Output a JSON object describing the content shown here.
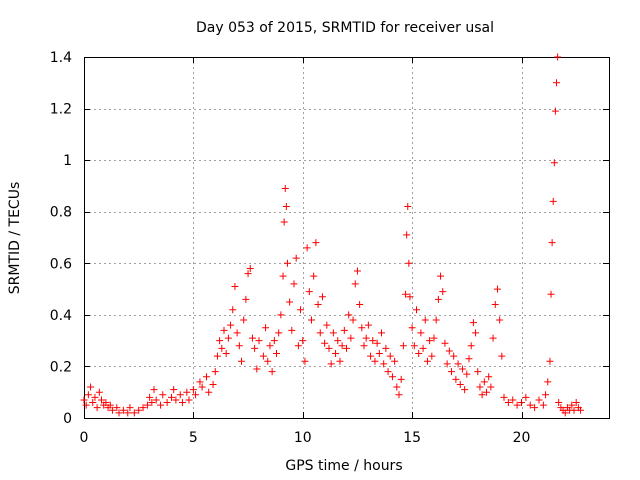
{
  "chart_data": {
    "type": "scatter",
    "title": "Day 053 of 2015, SRMTID for receiver usal",
    "xlabel": "GPS time / hours",
    "ylabel": "SRMTID / TECUs",
    "xlim": [
      0,
      24
    ],
    "ylim": [
      0,
      1.4
    ],
    "x_ticks": [
      0,
      5,
      10,
      15,
      20
    ],
    "x_tick_labels": [
      "0",
      "5",
      "10",
      "15",
      "20"
    ],
    "y_ticks": [
      0,
      0.2,
      0.4,
      0.6,
      0.8,
      1.0,
      1.2,
      1.4
    ],
    "y_tick_labels": [
      "0",
      "0.2",
      "0.4",
      "0.6",
      "0.8",
      "1",
      "1.2",
      "1.4"
    ],
    "grid": true,
    "marker": "+",
    "series_color": "#ff0000",
    "series": [
      {
        "name": "SRMTID",
        "points": [
          [
            0.0,
            0.07
          ],
          [
            0.1,
            0.05
          ],
          [
            0.2,
            0.09
          ],
          [
            0.3,
            0.12
          ],
          [
            0.4,
            0.06
          ],
          [
            0.5,
            0.08
          ],
          [
            0.6,
            0.04
          ],
          [
            0.7,
            0.1
          ],
          [
            0.8,
            0.07
          ],
          [
            0.9,
            0.05
          ],
          [
            1.0,
            0.06
          ],
          [
            1.1,
            0.04
          ],
          [
            1.2,
            0.05
          ],
          [
            1.3,
            0.03
          ],
          [
            1.5,
            0.04
          ],
          [
            1.6,
            0.02
          ],
          [
            1.8,
            0.03
          ],
          [
            2.0,
            0.02
          ],
          [
            2.1,
            0.04
          ],
          [
            2.3,
            0.02
          ],
          [
            2.5,
            0.03
          ],
          [
            2.7,
            0.04
          ],
          [
            2.9,
            0.05
          ],
          [
            3.0,
            0.08
          ],
          [
            3.1,
            0.06
          ],
          [
            3.2,
            0.11
          ],
          [
            3.3,
            0.07
          ],
          [
            3.5,
            0.05
          ],
          [
            3.6,
            0.09
          ],
          [
            3.8,
            0.06
          ],
          [
            4.0,
            0.08
          ],
          [
            4.1,
            0.11
          ],
          [
            4.2,
            0.07
          ],
          [
            4.4,
            0.09
          ],
          [
            4.5,
            0.06
          ],
          [
            4.7,
            0.1
          ],
          [
            4.8,
            0.07
          ],
          [
            5.0,
            0.11
          ],
          [
            5.1,
            0.09
          ],
          [
            5.3,
            0.14
          ],
          [
            5.4,
            0.12
          ],
          [
            5.6,
            0.16
          ],
          [
            5.7,
            0.1
          ],
          [
            5.9,
            0.13
          ],
          [
            6.0,
            0.18
          ],
          [
            6.1,
            0.24
          ],
          [
            6.2,
            0.3
          ],
          [
            6.3,
            0.27
          ],
          [
            6.4,
            0.34
          ],
          [
            6.5,
            0.25
          ],
          [
            6.6,
            0.31
          ],
          [
            6.7,
            0.36
          ],
          [
            6.8,
            0.42
          ],
          [
            6.9,
            0.51
          ],
          [
            7.0,
            0.33
          ],
          [
            7.1,
            0.28
          ],
          [
            7.2,
            0.22
          ],
          [
            7.3,
            0.38
          ],
          [
            7.4,
            0.46
          ],
          [
            7.5,
            0.56
          ],
          [
            7.6,
            0.58
          ],
          [
            7.7,
            0.31
          ],
          [
            7.8,
            0.27
          ],
          [
            7.9,
            0.19
          ],
          [
            8.0,
            0.3
          ],
          [
            8.2,
            0.24
          ],
          [
            8.3,
            0.35
          ],
          [
            8.4,
            0.22
          ],
          [
            8.5,
            0.28
          ],
          [
            8.6,
            0.18
          ],
          [
            8.7,
            0.3
          ],
          [
            8.8,
            0.25
          ],
          [
            8.9,
            0.33
          ],
          [
            9.0,
            0.4
          ],
          [
            9.1,
            0.55
          ],
          [
            9.15,
            0.76
          ],
          [
            9.2,
            0.89
          ],
          [
            9.25,
            0.82
          ],
          [
            9.3,
            0.6
          ],
          [
            9.4,
            0.45
          ],
          [
            9.5,
            0.34
          ],
          [
            9.6,
            0.52
          ],
          [
            9.7,
            0.62
          ],
          [
            9.8,
            0.28
          ],
          [
            9.9,
            0.42
          ],
          [
            10.0,
            0.3
          ],
          [
            10.1,
            0.22
          ],
          [
            10.2,
            0.66
          ],
          [
            10.3,
            0.49
          ],
          [
            10.4,
            0.38
          ],
          [
            10.5,
            0.55
          ],
          [
            10.6,
            0.68
          ],
          [
            10.7,
            0.44
          ],
          [
            10.8,
            0.33
          ],
          [
            10.9,
            0.47
          ],
          [
            11.0,
            0.29
          ],
          [
            11.1,
            0.36
          ],
          [
            11.2,
            0.27
          ],
          [
            11.3,
            0.21
          ],
          [
            11.4,
            0.33
          ],
          [
            11.5,
            0.25
          ],
          [
            11.6,
            0.3
          ],
          [
            11.7,
            0.22
          ],
          [
            11.8,
            0.28
          ],
          [
            11.9,
            0.34
          ],
          [
            12.0,
            0.27
          ],
          [
            12.1,
            0.4
          ],
          [
            12.2,
            0.31
          ],
          [
            12.3,
            0.38
          ],
          [
            12.4,
            0.52
          ],
          [
            12.5,
            0.57
          ],
          [
            12.6,
            0.44
          ],
          [
            12.7,
            0.35
          ],
          [
            12.8,
            0.28
          ],
          [
            12.9,
            0.31
          ],
          [
            13.0,
            0.36
          ],
          [
            13.1,
            0.24
          ],
          [
            13.2,
            0.3
          ],
          [
            13.3,
            0.22
          ],
          [
            13.4,
            0.29
          ],
          [
            13.5,
            0.25
          ],
          [
            13.6,
            0.33
          ],
          [
            13.7,
            0.21
          ],
          [
            13.8,
            0.27
          ],
          [
            13.9,
            0.18
          ],
          [
            14.0,
            0.24
          ],
          [
            14.1,
            0.16
          ],
          [
            14.2,
            0.22
          ],
          [
            14.3,
            0.12
          ],
          [
            14.4,
            0.09
          ],
          [
            14.5,
            0.15
          ],
          [
            14.6,
            0.28
          ],
          [
            14.7,
            0.48
          ],
          [
            14.75,
            0.71
          ],
          [
            14.8,
            0.82
          ],
          [
            14.85,
            0.6
          ],
          [
            14.9,
            0.47
          ],
          [
            15.0,
            0.35
          ],
          [
            15.1,
            0.28
          ],
          [
            15.2,
            0.42
          ],
          [
            15.3,
            0.25
          ],
          [
            15.4,
            0.33
          ],
          [
            15.5,
            0.27
          ],
          [
            15.6,
            0.38
          ],
          [
            15.7,
            0.22
          ],
          [
            15.8,
            0.3
          ],
          [
            15.9,
            0.24
          ],
          [
            16.0,
            0.31
          ],
          [
            16.1,
            0.38
          ],
          [
            16.2,
            0.46
          ],
          [
            16.3,
            0.55
          ],
          [
            16.4,
            0.49
          ],
          [
            16.5,
            0.29
          ],
          [
            16.6,
            0.21
          ],
          [
            16.7,
            0.26
          ],
          [
            16.8,
            0.18
          ],
          [
            16.9,
            0.24
          ],
          [
            17.0,
            0.15
          ],
          [
            17.1,
            0.21
          ],
          [
            17.2,
            0.13
          ],
          [
            17.3,
            0.19
          ],
          [
            17.4,
            0.11
          ],
          [
            17.5,
            0.17
          ],
          [
            17.6,
            0.23
          ],
          [
            17.7,
            0.28
          ],
          [
            17.8,
            0.37
          ],
          [
            17.9,
            0.33
          ],
          [
            18.0,
            0.18
          ],
          [
            18.1,
            0.12
          ],
          [
            18.2,
            0.09
          ],
          [
            18.3,
            0.14
          ],
          [
            18.4,
            0.1
          ],
          [
            18.5,
            0.16
          ],
          [
            18.6,
            0.12
          ],
          [
            18.7,
            0.31
          ],
          [
            18.8,
            0.44
          ],
          [
            18.9,
            0.5
          ],
          [
            19.0,
            0.38
          ],
          [
            19.1,
            0.24
          ],
          [
            19.2,
            0.08
          ],
          [
            19.4,
            0.06
          ],
          [
            19.6,
            0.07
          ],
          [
            19.8,
            0.05
          ],
          [
            20.0,
            0.06
          ],
          [
            20.2,
            0.08
          ],
          [
            20.4,
            0.05
          ],
          [
            20.6,
            0.04
          ],
          [
            20.8,
            0.07
          ],
          [
            21.0,
            0.05
          ],
          [
            21.1,
            0.09
          ],
          [
            21.2,
            0.14
          ],
          [
            21.3,
            0.22
          ],
          [
            21.35,
            0.48
          ],
          [
            21.4,
            0.68
          ],
          [
            21.45,
            0.84
          ],
          [
            21.5,
            0.99
          ],
          [
            21.55,
            1.19
          ],
          [
            21.6,
            1.3
          ],
          [
            21.65,
            1.4
          ],
          [
            21.7,
            0.06
          ],
          [
            21.8,
            0.04
          ],
          [
            21.9,
            0.03
          ],
          [
            22.0,
            0.02
          ],
          [
            22.1,
            0.04
          ],
          [
            22.2,
            0.03
          ],
          [
            22.3,
            0.05
          ],
          [
            22.4,
            0.03
          ],
          [
            22.5,
            0.06
          ],
          [
            22.6,
            0.04
          ],
          [
            22.7,
            0.03
          ]
        ]
      }
    ]
  }
}
